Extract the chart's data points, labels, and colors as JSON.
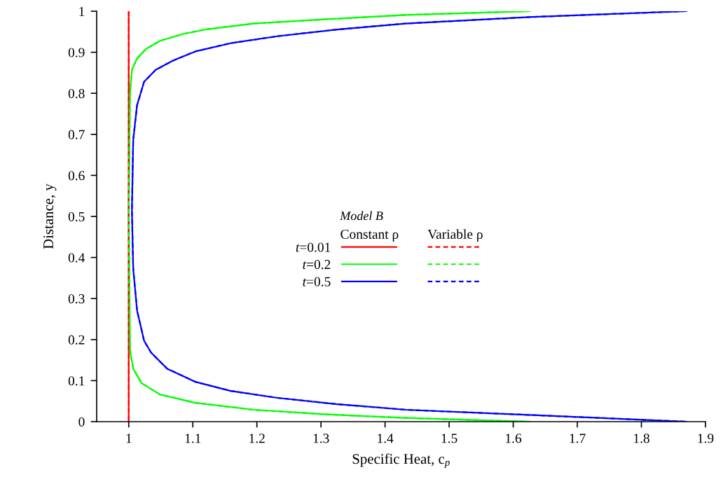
{
  "chart_data": {
    "type": "line",
    "xlabel": "Specific Heat, c$_{p}$",
    "ylabel": "Distance, y",
    "legend_title": "Model B",
    "annotations": [
      "Constant ρ",
      "Variable ρ"
    ],
    "xlim": [
      0.95,
      1.9
    ],
    "xticks": [
      1,
      1.1,
      1.2,
      1.3,
      1.4,
      1.5,
      1.6,
      1.7,
      1.8,
      1.9
    ],
    "ylim": [
      0,
      1
    ],
    "yticks": [
      0,
      0.1,
      0.2,
      0.3,
      0.4,
      0.5,
      0.6,
      0.7,
      0.8,
      0.9,
      1
    ],
    "grid": false,
    "legend": "center",
    "marker": "none",
    "series": [
      {
        "name": "t=0.01",
        "color": "#ff0000",
        "line_style": "solid",
        "x": [
          1,
          1
        ],
        "values": [
          1,
          0
        ]
      },
      {
        "name": "t=0.2",
        "color": "#00ff00",
        "line_style": "solid",
        "x": [
          1.626,
          1.52,
          1.432,
          1.305,
          1.195,
          1.122,
          1.086,
          1.049,
          1.027,
          1.013,
          1.005,
          1.002,
          1.0,
          1.002,
          1.007,
          1.02,
          1.049,
          1.104,
          1.195,
          1.305,
          1.432,
          1.626
        ],
        "values": [
          1.0,
          0.995,
          0.991,
          0.98,
          0.97,
          0.956,
          0.945,
          0.928,
          0.908,
          0.885,
          0.857,
          0.8,
          0.515,
          0.174,
          0.129,
          0.094,
          0.066,
          0.046,
          0.029,
          0.018,
          0.009,
          0.0
        ]
      },
      {
        "name": "t=0.5",
        "color": "#0000ff",
        "line_style": "solid",
        "x": [
          1.87,
          1.63,
          1.432,
          1.323,
          1.232,
          1.159,
          1.104,
          1.068,
          1.042,
          1.024,
          1.013,
          1.007,
          1.005,
          1.007,
          1.013,
          1.024,
          1.035,
          1.06,
          1.104,
          1.159,
          1.232,
          1.323,
          1.432,
          1.63,
          1.87
        ],
        "values": [
          1.0,
          0.986,
          0.97,
          0.955,
          0.939,
          0.922,
          0.902,
          0.879,
          0.857,
          0.828,
          0.771,
          0.686,
          0.515,
          0.373,
          0.271,
          0.197,
          0.168,
          0.129,
          0.097,
          0.075,
          0.058,
          0.043,
          0.029,
          0.016,
          0.0
        ]
      },
      {
        "color": "#ff0000",
        "line_style": "dashed",
        "x": [
          1,
          1
        ],
        "values": [
          1,
          0
        ]
      },
      {
        "color": "#00ff00",
        "line_style": "dashed",
        "x": [
          1.626,
          1.52,
          1.432,
          1.305,
          1.195,
          1.122,
          1.086,
          1.049,
          1.027,
          1.013,
          1.005,
          1.002,
          1.0,
          1.002,
          1.007,
          1.02,
          1.049,
          1.104,
          1.195,
          1.305,
          1.432,
          1.626
        ],
        "values": [
          1.0,
          0.995,
          0.991,
          0.98,
          0.97,
          0.956,
          0.945,
          0.928,
          0.908,
          0.885,
          0.857,
          0.8,
          0.515,
          0.174,
          0.129,
          0.094,
          0.066,
          0.046,
          0.029,
          0.018,
          0.009,
          0.0
        ]
      },
      {
        "color": "#0000ff",
        "line_style": "dashed",
        "x": [
          1.87,
          1.63,
          1.432,
          1.323,
          1.232,
          1.159,
          1.104,
          1.068,
          1.042,
          1.024,
          1.013,
          1.007,
          1.005,
          1.007,
          1.013,
          1.024,
          1.035,
          1.06,
          1.104,
          1.159,
          1.232,
          1.323,
          1.432,
          1.63,
          1.87
        ],
        "values": [
          1.0,
          0.986,
          0.97,
          0.955,
          0.939,
          0.922,
          0.902,
          0.879,
          0.857,
          0.828,
          0.771,
          0.686,
          0.515,
          0.373,
          0.271,
          0.197,
          0.168,
          0.129,
          0.097,
          0.075,
          0.058,
          0.043,
          0.029,
          0.016,
          0.0
        ]
      }
    ]
  }
}
